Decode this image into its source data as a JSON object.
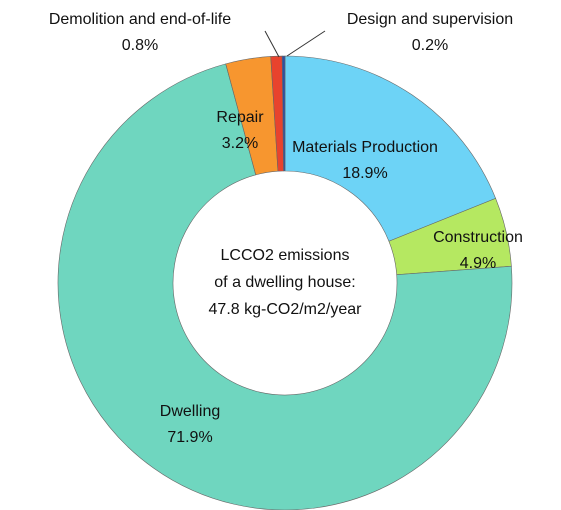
{
  "chart_data": {
    "type": "donut",
    "categories": [
      "Materials Production",
      "Construction",
      "Dwelling",
      "Repair",
      "Demolition and end-of-life",
      "Design and supervision"
    ],
    "values": [
      18.9,
      4.9,
      71.9,
      3.2,
      0.8,
      0.2
    ],
    "value_labels": [
      "18.9%",
      "4.9%",
      "71.9%",
      "3.2%",
      "0.8%",
      "0.2%"
    ],
    "colors": [
      "#6dd3f6",
      "#b5e861",
      "#6fd6bf",
      "#f7962f",
      "#e8432d",
      "#2e4fa3"
    ],
    "center_text": [
      "LCCO2 emissions",
      "of a dwelling house:",
      "47.8 kg-CO2/m2/year"
    ]
  }
}
